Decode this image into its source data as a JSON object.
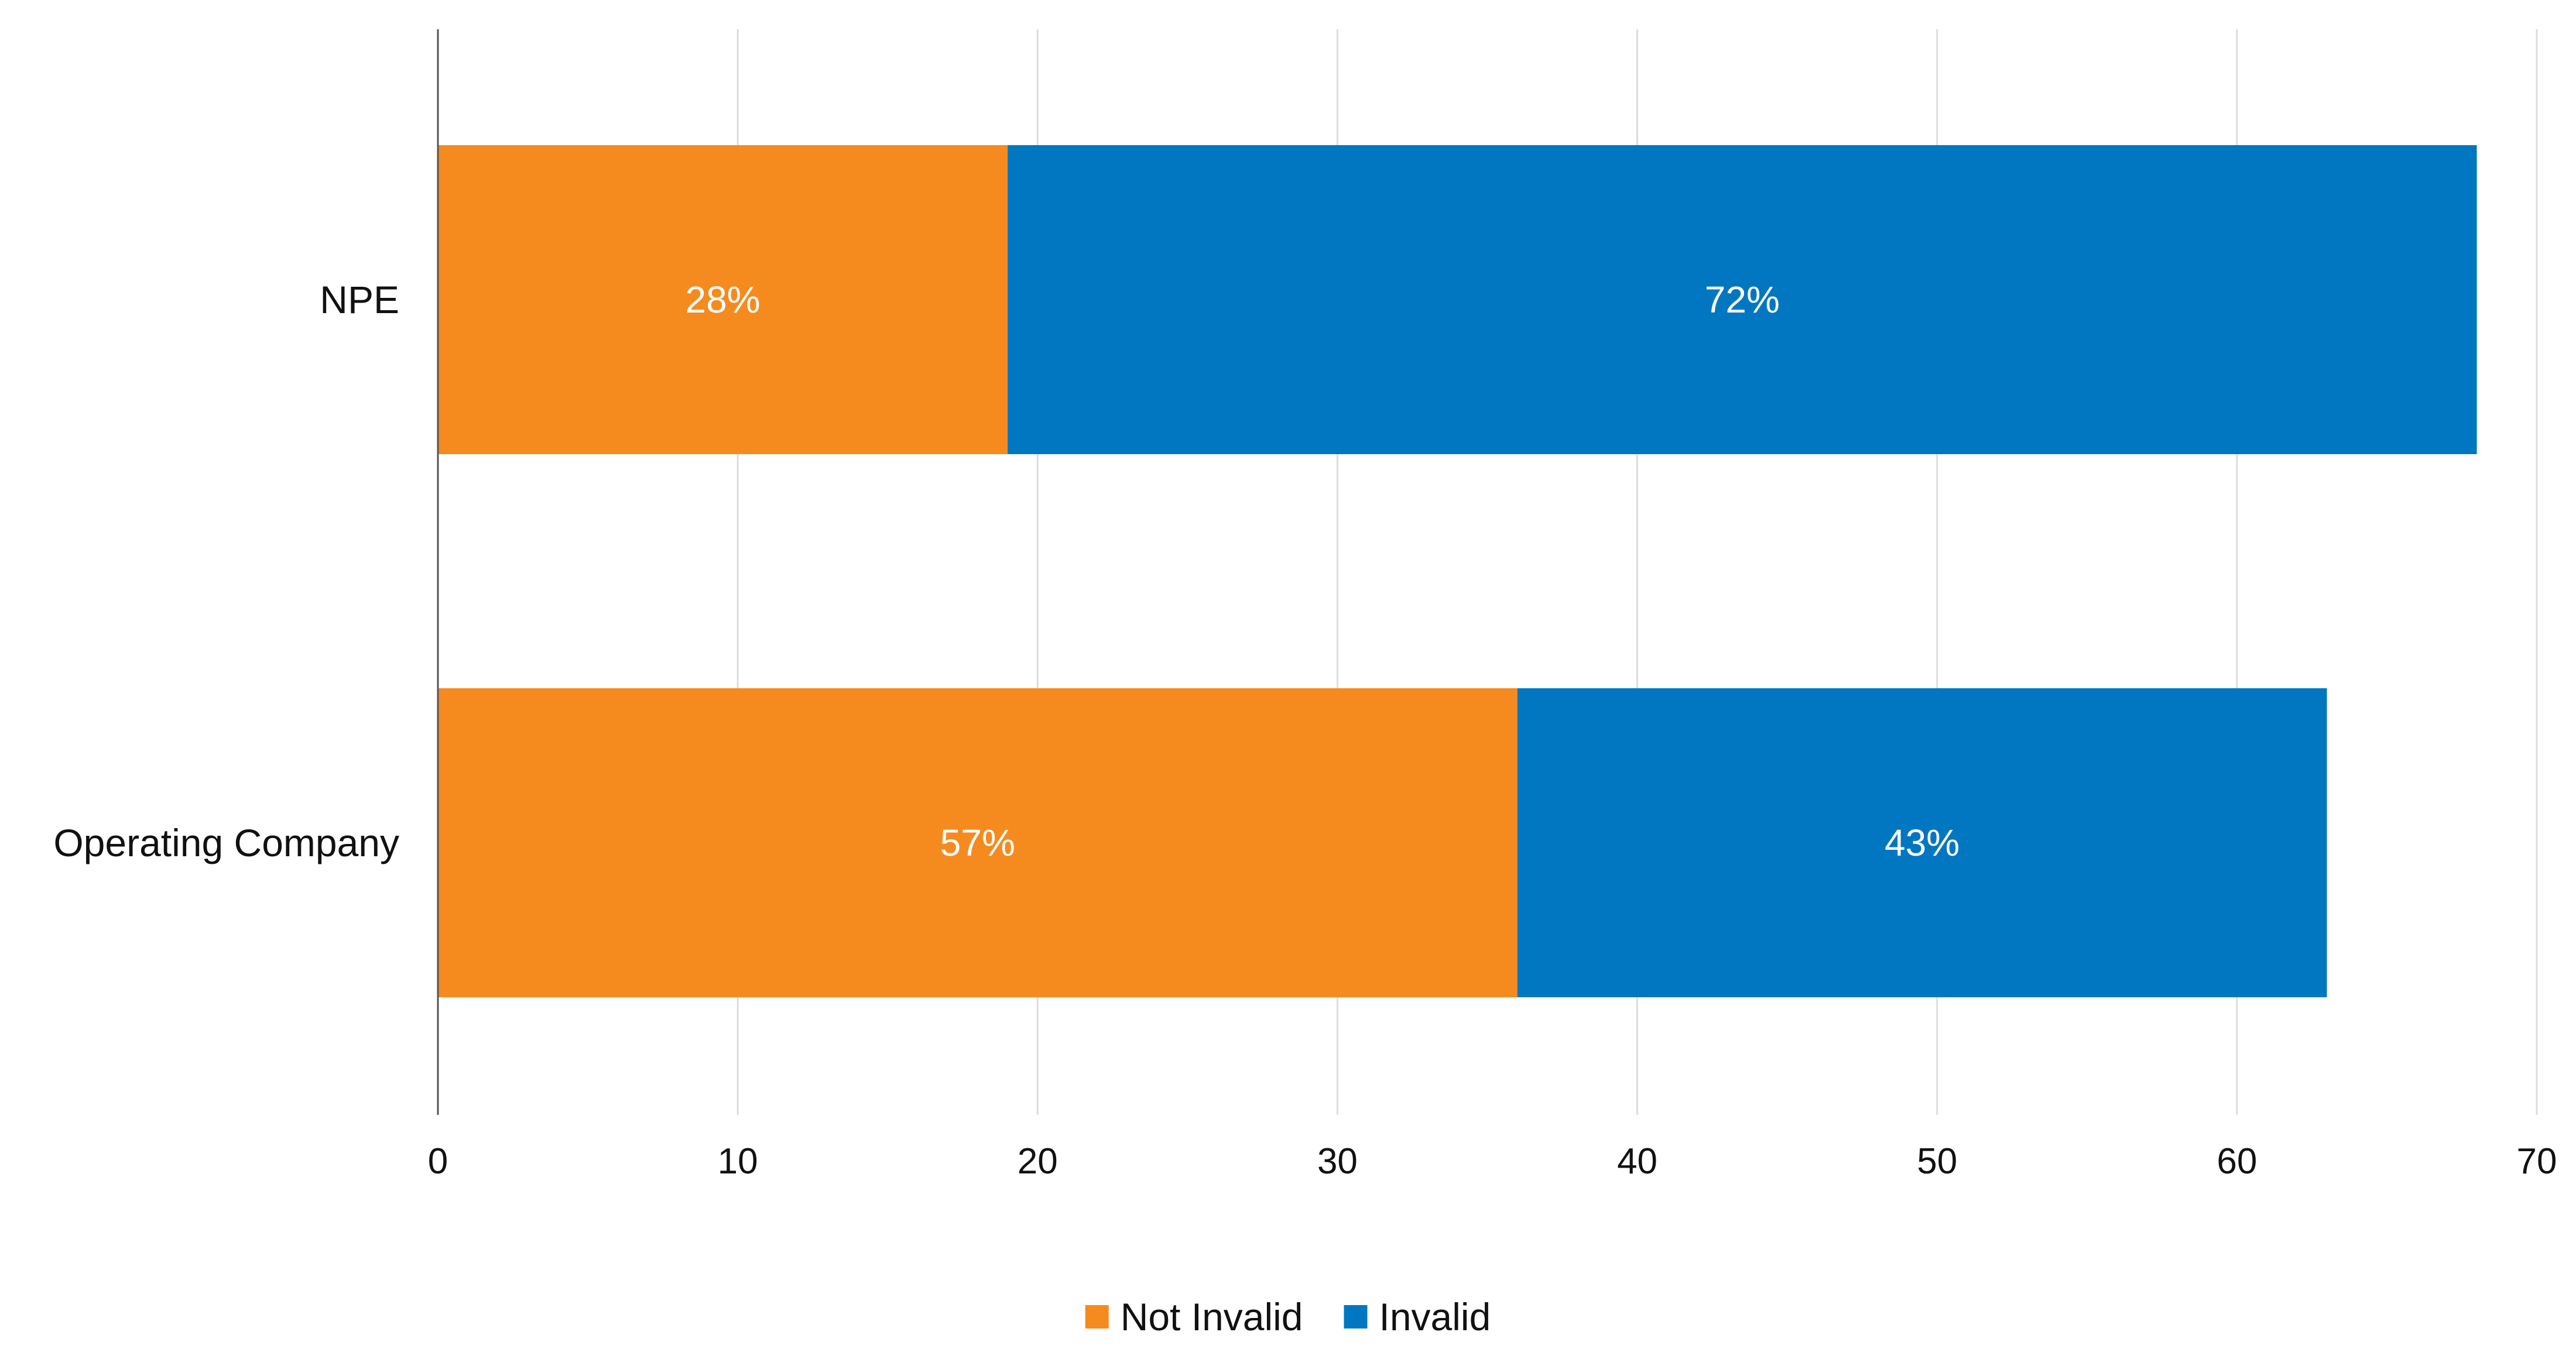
{
  "chart_data": {
    "type": "bar",
    "orientation": "horizontal",
    "stacked": true,
    "categories": [
      "NPE",
      "Operating Company"
    ],
    "series": [
      {
        "name": "Not Invalid",
        "values": [
          19,
          36
        ],
        "labels": [
          "28%",
          "57%"
        ],
        "color": "#F58B1F"
      },
      {
        "name": "Invalid",
        "values": [
          49,
          27
        ],
        "labels": [
          "72%",
          "43%"
        ],
        "color": "#0077C0"
      }
    ],
    "xlim": [
      0,
      70
    ],
    "xticks": [
      0,
      10,
      20,
      30,
      40,
      50,
      60,
      70
    ],
    "xtick_labels": [
      "0",
      "10",
      "20",
      "30",
      "40",
      "50",
      "60",
      "70"
    ],
    "grid": "vertical",
    "legend_position": "bottom-center",
    "title": "",
    "xlabel": "",
    "ylabel": ""
  },
  "colors": {
    "gridline": "#DDDDDD",
    "axis": "#555555"
  }
}
